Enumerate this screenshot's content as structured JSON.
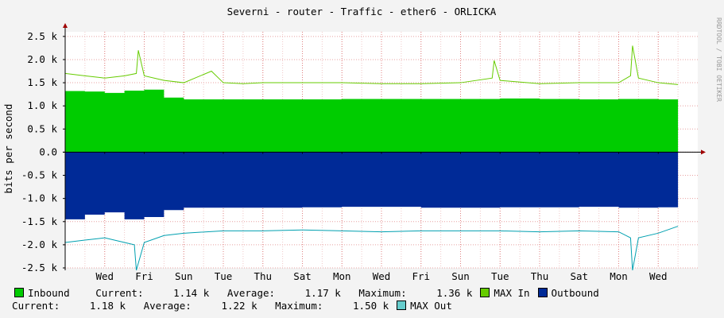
{
  "chart_data": {
    "type": "area",
    "title": "Severni - router - Traffic - ether6 - ORLICKA",
    "ylabel": "bits per second",
    "watermark": "RRDTOOL / TOBI OETIKER",
    "ylim": [
      -2500,
      2600
    ],
    "y_ticks": [
      {
        "value": 2500,
        "label": "2.5 k"
      },
      {
        "value": 2000,
        "label": "2.0 k"
      },
      {
        "value": 1500,
        "label": "1.5 k"
      },
      {
        "value": 1000,
        "label": "1.0 k"
      },
      {
        "value": 500,
        "label": "0.5 k"
      },
      {
        "value": 0,
        "label": "0.0"
      },
      {
        "value": -500,
        "label": "-0.5 k"
      },
      {
        "value": -1000,
        "label": "-1.0 k"
      },
      {
        "value": -1500,
        "label": "-1.5 k"
      },
      {
        "value": -2000,
        "label": "-2.0 k"
      },
      {
        "value": -2500,
        "label": "-2.5 k"
      }
    ],
    "x_range_days": [
      0,
      16
    ],
    "x_ticks": [
      {
        "day": 1,
        "label": "Wed"
      },
      {
        "day": 2,
        "label": "Fri"
      },
      {
        "day": 3,
        "label": "Sun"
      },
      {
        "day": 4,
        "label": "Tue"
      },
      {
        "day": 5,
        "label": "Thu"
      },
      {
        "day": 6,
        "label": "Sat"
      },
      {
        "day": 7,
        "label": "Mon"
      },
      {
        "day": 8,
        "label": "Wed"
      },
      {
        "day": 9,
        "label": "Fri"
      },
      {
        "day": 10,
        "label": "Sun"
      },
      {
        "day": 11,
        "label": "Tue"
      },
      {
        "day": 12,
        "label": "Thu"
      },
      {
        "day": 13,
        "label": "Sat"
      },
      {
        "day": 14,
        "label": "Mon"
      },
      {
        "day": 15,
        "label": "Wed"
      }
    ],
    "grid": true,
    "series": [
      {
        "name": "Inbound",
        "color": "#00cc00",
        "kind": "area",
        "x": [
          0,
          0.5,
          1,
          1.5,
          2,
          2.5,
          3,
          4,
          5,
          6,
          7,
          8,
          9,
          10,
          11,
          12,
          13,
          14,
          15,
          15.5
        ],
        "values": [
          1320,
          1310,
          1280,
          1330,
          1350,
          1180,
          1140,
          1140,
          1140,
          1140,
          1150,
          1150,
          1150,
          1150,
          1160,
          1150,
          1140,
          1150,
          1140,
          1140
        ]
      },
      {
        "name": "MAX In",
        "color": "#66cc00",
        "kind": "line",
        "x": [
          0,
          0.5,
          1,
          1.5,
          1.8,
          1.85,
          2,
          2.5,
          3,
          3.7,
          4,
          4.5,
          5,
          6,
          7,
          8,
          9,
          10,
          10.8,
          10.85,
          11,
          12,
          13,
          14,
          14.3,
          14.35,
          14.5,
          15,
          15.5
        ],
        "values": [
          1700,
          1650,
          1600,
          1650,
          1700,
          2200,
          1650,
          1550,
          1500,
          1750,
          1500,
          1480,
          1500,
          1500,
          1500,
          1480,
          1480,
          1500,
          1600,
          1980,
          1550,
          1480,
          1500,
          1500,
          1650,
          2300,
          1600,
          1500,
          1460
        ]
      },
      {
        "name": "Outbound",
        "color": "#002a97",
        "kind": "area",
        "x": [
          0,
          0.5,
          1,
          1.5,
          2,
          2.5,
          3,
          4,
          5,
          6,
          7,
          8,
          9,
          10,
          11,
          12,
          13,
          14,
          15,
          15.5
        ],
        "values": [
          -1450,
          -1350,
          -1300,
          -1450,
          -1400,
          -1250,
          -1200,
          -1200,
          -1200,
          -1190,
          -1180,
          -1180,
          -1200,
          -1200,
          -1190,
          -1190,
          -1180,
          -1200,
          -1190,
          -1180
        ]
      },
      {
        "name": "MAX Out",
        "color": "#00a0b0",
        "kind": "line",
        "x": [
          0,
          0.5,
          1,
          1.5,
          1.75,
          1.8,
          2,
          2.5,
          3,
          4,
          5,
          6,
          7,
          8,
          9,
          10,
          11,
          12,
          13,
          14,
          14.3,
          14.35,
          14.5,
          15,
          15.5
        ],
        "values": [
          -1950,
          -1900,
          -1850,
          -1950,
          -2000,
          -2550,
          -1950,
          -1800,
          -1750,
          -1700,
          -1700,
          -1680,
          -1700,
          -1720,
          -1700,
          -1700,
          -1700,
          -1720,
          -1700,
          -1720,
          -1850,
          -2550,
          -1850,
          -1750,
          -1600
        ]
      }
    ],
    "legend": {
      "row1": [
        {
          "type": "swatch",
          "color": "#00cc00",
          "text": "Inbound"
        },
        {
          "type": "text",
          "text": "   Current:     1.14 k   Average:     1.17 k   Maximum:     1.36 k"
        },
        {
          "type": "swatch",
          "color": "#66cc00",
          "text": "MAX In"
        },
        {
          "type": "swatch",
          "color": "#002a97",
          "text": "Outbound"
        }
      ],
      "row2": [
        {
          "type": "text",
          "text": "  Current:     1.18 k   Average:     1.22 k   Maximum:     1.50 k"
        },
        {
          "type": "swatch",
          "color": "#66cccc",
          "text": "MAX Out"
        }
      ]
    }
  }
}
